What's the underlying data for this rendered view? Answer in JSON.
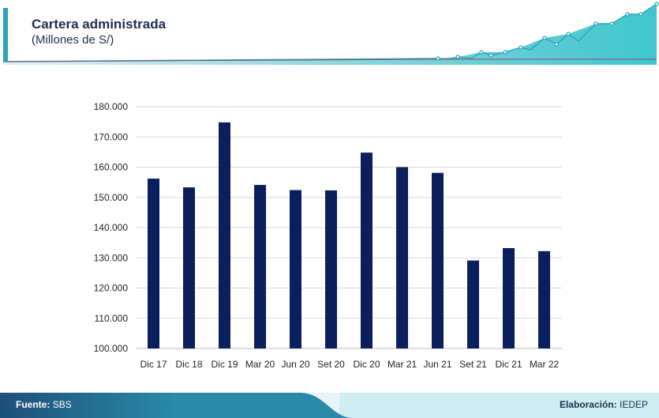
{
  "header": {
    "title": "Cartera administrada",
    "subtitle": "(Millones de S/)"
  },
  "footer": {
    "source_label": "Fuente:",
    "source_value": "SBS",
    "credit_label": "Elaboración:",
    "credit_value": "IEDEP"
  },
  "colors": {
    "bar": "#0b1f5c",
    "accent": "#2aa6b8",
    "grid": "#d9d9d9"
  },
  "chart_data": {
    "type": "bar",
    "categories": [
      "Dic 17",
      "Dic 18",
      "Dic 19",
      "Mar 20",
      "Jun 20",
      "Set 20",
      "Dic 20",
      "Mar 21",
      "Jun 21",
      "Set 21",
      "Dic 21",
      "Mar 22"
    ],
    "values": [
      156200,
      153300,
      174800,
      154100,
      152400,
      152300,
      164800,
      160000,
      158100,
      129100,
      133200,
      132200
    ],
    "ylim": [
      100000,
      180000
    ],
    "yticks": [
      "100.000",
      "110.000",
      "120.000",
      "130.000",
      "140.000",
      "150.000",
      "160.000",
      "170.000",
      "180.000"
    ],
    "grid": true
  }
}
